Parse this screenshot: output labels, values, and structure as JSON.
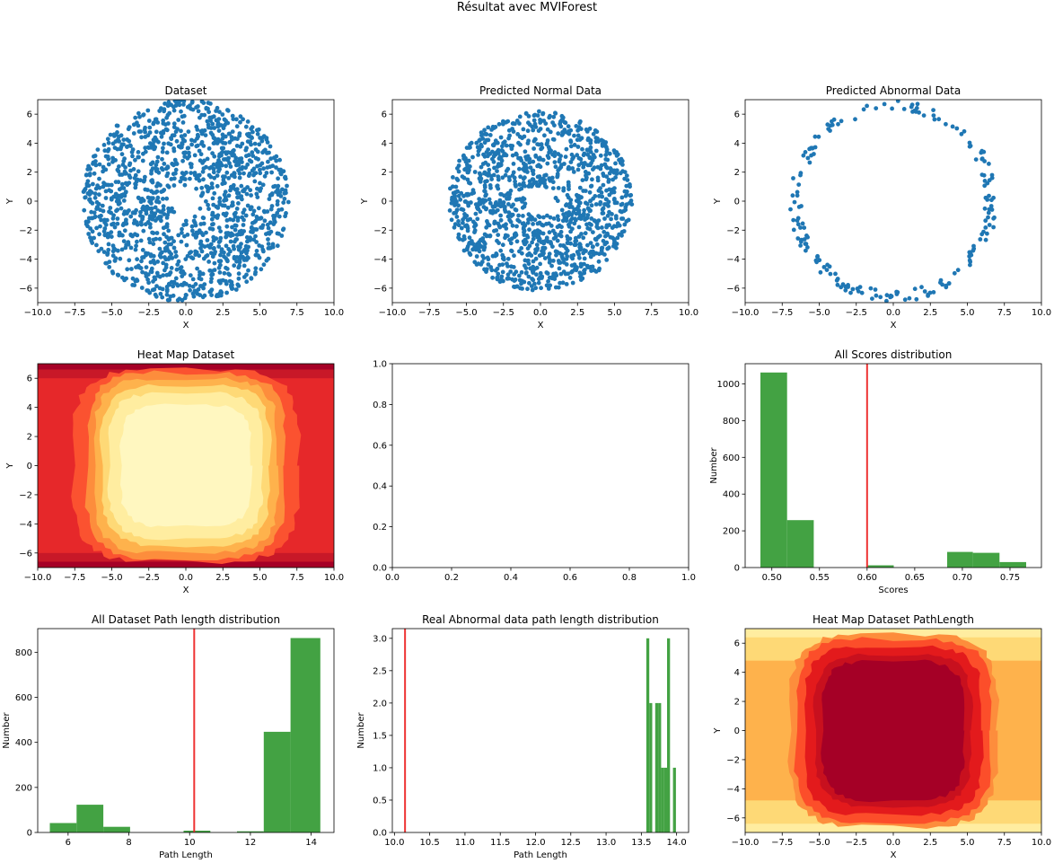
{
  "figure": {
    "suptitle": "Résultat avec MVIForest"
  },
  "colors": {
    "scatter": "#1f77b4",
    "hist": "#43a243",
    "threshold": "#ee3333"
  },
  "chart_data": [
    {
      "id": "dataset",
      "type": "scatter",
      "title": "Dataset",
      "xlabel": "X",
      "ylabel": "Y",
      "xlim": [
        -10,
        10
      ],
      "ylim": [
        -7,
        7
      ],
      "xticks": [
        -10,
        -7.5,
        -5,
        -2.5,
        0,
        2.5,
        5,
        7.5,
        10
      ],
      "xtick_labels": [
        "−10.0",
        "−7.5",
        "−5.0",
        "−2.5",
        "0.0",
        "2.5",
        "5.0",
        "7.5",
        "10.0"
      ],
      "yticks": [
        -6,
        -4,
        -2,
        0,
        2,
        4,
        6
      ],
      "ytick_labels": [
        "−6",
        "−4",
        "−2",
        "0",
        "2",
        "4",
        "6"
      ],
      "point_cloud": {
        "shape": "annulus",
        "inner_radius": 1.0,
        "outer_radius": 7.0,
        "count": 1400
      }
    },
    {
      "id": "normal",
      "type": "scatter",
      "title": "Predicted Normal Data",
      "xlabel": "X",
      "ylabel": "Y",
      "xlim": [
        -10,
        10
      ],
      "ylim": [
        -7,
        7
      ],
      "xticks": [
        -10,
        -7.5,
        -5,
        -2.5,
        0,
        2.5,
        5,
        7.5,
        10
      ],
      "xtick_labels": [
        "−10.0",
        "−7.5",
        "−5.0",
        "−2.5",
        "0.0",
        "2.5",
        "5.0",
        "7.5",
        "10.0"
      ],
      "yticks": [
        -6,
        -4,
        -2,
        0,
        2,
        4,
        6
      ],
      "ytick_labels": [
        "−6",
        "−4",
        "−2",
        "0",
        "2",
        "4",
        "6"
      ],
      "point_cloud": {
        "shape": "annulus",
        "inner_radius": 1.0,
        "outer_radius": 6.2,
        "count": 1250
      }
    },
    {
      "id": "abnormal",
      "type": "scatter",
      "title": "Predicted Abnormal Data",
      "xlabel": "X",
      "ylabel": "Y",
      "xlim": [
        -10,
        10
      ],
      "ylim": [
        -7,
        7
      ],
      "xticks": [
        -10,
        -7.5,
        -5,
        -2.5,
        0,
        2.5,
        5,
        7.5,
        10
      ],
      "xtick_labels": [
        "−10.0",
        "−7.5",
        "−5.0",
        "−2.5",
        "0.0",
        "2.5",
        "5.0",
        "7.5",
        "10.0"
      ],
      "yticks": [
        -6,
        -4,
        -2,
        0,
        2,
        4,
        6
      ],
      "ytick_labels": [
        "−6",
        "−4",
        "−2",
        "0",
        "2",
        "4",
        "6"
      ],
      "point_cloud": {
        "shape": "ring",
        "inner_radius": 6.2,
        "outer_radius": 7.0,
        "count": 190
      }
    },
    {
      "id": "heatmap1",
      "type": "heatmap",
      "title": "Heat Map Dataset",
      "xlabel": "X",
      "ylabel": "Y",
      "xlim": [
        -10,
        10
      ],
      "ylim": [
        -7,
        7
      ],
      "xticks": [
        -10,
        -7.5,
        -5,
        -2.5,
        0,
        2.5,
        5,
        7.5,
        10
      ],
      "xtick_labels": [
        "−10.0",
        "−7.5",
        "−5.0",
        "−2.5",
        "0.0",
        "2.5",
        "5.0",
        "7.5",
        "10.0"
      ],
      "yticks": [
        -6,
        -4,
        -2,
        0,
        2,
        4,
        6
      ],
      "ytick_labels": [
        "−6",
        "−4",
        "−2",
        "0",
        "2",
        "4",
        "6"
      ],
      "colormap": "YlOrRd_reversed",
      "levels": [
        {
          "color": "#a50026",
          "hx": 10.0,
          "hy": 7.0
        },
        {
          "color": "#c81828",
          "hx": 10.0,
          "hy": 6.6
        },
        {
          "color": "#e6282a",
          "hx": 10.0,
          "hy": 6.0
        },
        {
          "color": "#fb5230",
          "hx": 7.6,
          "hy": 6.6
        },
        {
          "color": "#fd8d3c",
          "hx": 6.7,
          "hy": 6.4
        },
        {
          "color": "#feb24c",
          "hx": 6.2,
          "hy": 6.0
        },
        {
          "color": "#fed976",
          "hx": 5.7,
          "hy": 5.5
        },
        {
          "color": "#ffeda0",
          "hx": 5.2,
          "hy": 5.0
        },
        {
          "color": "#fff7c0",
          "hx": 4.4,
          "hy": 4.2
        }
      ]
    },
    {
      "id": "empty",
      "type": "scatter",
      "title": "",
      "xlabel": "",
      "ylabel": "",
      "xlim": [
        0,
        1
      ],
      "ylim": [
        0,
        1
      ],
      "xticks": [
        0,
        0.2,
        0.4,
        0.6,
        0.8,
        1.0
      ],
      "xtick_labels": [
        "0.0",
        "0.2",
        "0.4",
        "0.6",
        "0.8",
        "1.0"
      ],
      "yticks": [
        0,
        0.2,
        0.4,
        0.6,
        0.8,
        1.0
      ],
      "ytick_labels": [
        "0.0",
        "0.2",
        "0.4",
        "0.6",
        "0.8",
        "1.0"
      ]
    },
    {
      "id": "scores",
      "type": "bar",
      "title": "All Scores distribution",
      "xlabel": "Scores",
      "ylabel": "Number",
      "xlim": [
        0.472,
        0.783
      ],
      "ylim": [
        0,
        1110
      ],
      "xticks": [
        0.5,
        0.55,
        0.6,
        0.65,
        0.7,
        0.75
      ],
      "xtick_labels": [
        "0.50",
        "0.55",
        "0.60",
        "0.65",
        "0.70",
        "0.75"
      ],
      "yticks": [
        0,
        200,
        400,
        600,
        800,
        1000
      ],
      "ytick_labels": [
        "0",
        "200",
        "400",
        "600",
        "800",
        "1000"
      ],
      "bins": [
        {
          "x0": 0.488,
          "x1": 0.516,
          "value": 1062
        },
        {
          "x0": 0.516,
          "x1": 0.544,
          "value": 258
        },
        {
          "x0": 0.544,
          "x1": 0.572,
          "value": 0
        },
        {
          "x0": 0.572,
          "x1": 0.6,
          "value": 0
        },
        {
          "x0": 0.6,
          "x1": 0.628,
          "value": 12
        },
        {
          "x0": 0.628,
          "x1": 0.656,
          "value": 0
        },
        {
          "x0": 0.656,
          "x1": 0.684,
          "value": 0
        },
        {
          "x0": 0.684,
          "x1": 0.711,
          "value": 85
        },
        {
          "x0": 0.711,
          "x1": 0.739,
          "value": 80
        },
        {
          "x0": 0.739,
          "x1": 0.767,
          "value": 30
        }
      ],
      "vline": 0.6
    },
    {
      "id": "pathlen",
      "type": "bar",
      "title": "All Dataset Path length distribution",
      "xlabel": "Path Length",
      "ylabel": "Number",
      "xlim": [
        5.0,
        14.75
      ],
      "ylim": [
        0,
        905
      ],
      "xticks": [
        6,
        8,
        10,
        12,
        14
      ],
      "xtick_labels": [
        "6",
        "8",
        "10",
        "12",
        "14"
      ],
      "yticks": [
        0,
        200,
        400,
        600,
        800
      ],
      "ytick_labels": [
        "0",
        "200",
        "400",
        "600",
        "800"
      ],
      "bins": [
        {
          "x0": 5.4,
          "x1": 6.28,
          "value": 42
        },
        {
          "x0": 6.28,
          "x1": 7.16,
          "value": 123
        },
        {
          "x0": 7.16,
          "x1": 8.04,
          "value": 25
        },
        {
          "x0": 8.04,
          "x1": 8.92,
          "value": 0
        },
        {
          "x0": 8.92,
          "x1": 9.8,
          "value": 0
        },
        {
          "x0": 9.8,
          "x1": 10.68,
          "value": 8
        },
        {
          "x0": 10.68,
          "x1": 11.56,
          "value": 0
        },
        {
          "x0": 11.56,
          "x1": 12.44,
          "value": 5
        },
        {
          "x0": 12.44,
          "x1": 13.32,
          "value": 447
        },
        {
          "x0": 13.32,
          "x1": 14.3,
          "value": 863
        }
      ],
      "vline": 10.15
    },
    {
      "id": "realabn",
      "type": "bar",
      "title": "Real Abnormal data path length distribution",
      "xlabel": "Path Length",
      "ylabel": "Number",
      "xlim": [
        9.97,
        14.17
      ],
      "ylim": [
        0,
        3.15
      ],
      "xticks": [
        10,
        10.5,
        11,
        11.5,
        12,
        12.5,
        13,
        13.5,
        14
      ],
      "xtick_labels": [
        "10.0",
        "10.5",
        "11.0",
        "11.5",
        "12.0",
        "12.5",
        "13.0",
        "13.5",
        "14.0"
      ],
      "yticks": [
        0,
        0.5,
        1,
        1.5,
        2,
        2.5,
        3
      ],
      "ytick_labels": [
        "0.0",
        "0.5",
        "1.0",
        "1.5",
        "2.0",
        "2.5",
        "3.0"
      ],
      "bins": [
        {
          "x0": 13.57,
          "x1": 13.612,
          "value": 3
        },
        {
          "x0": 13.612,
          "x1": 13.654,
          "value": 2
        },
        {
          "x0": 13.654,
          "x1": 13.696,
          "value": 0
        },
        {
          "x0": 13.696,
          "x1": 13.738,
          "value": 2
        },
        {
          "x0": 13.738,
          "x1": 13.78,
          "value": 2
        },
        {
          "x0": 13.78,
          "x1": 13.822,
          "value": 1
        },
        {
          "x0": 13.822,
          "x1": 13.864,
          "value": 1
        },
        {
          "x0": 13.864,
          "x1": 13.906,
          "value": 3
        },
        {
          "x0": 13.906,
          "x1": 13.948,
          "value": 0
        },
        {
          "x0": 13.948,
          "x1": 13.99,
          "value": 1
        }
      ],
      "vline": 10.15
    },
    {
      "id": "heatmap2",
      "type": "heatmap",
      "title": "Heat Map Dataset PathLength",
      "xlabel": "X",
      "ylabel": "Y",
      "xlim": [
        -10,
        10
      ],
      "ylim": [
        -7,
        7
      ],
      "xticks": [
        -10,
        -7.5,
        -5,
        -2.5,
        0,
        2.5,
        5,
        7.5,
        10
      ],
      "xtick_labels": [
        "−10.0",
        "−7.5",
        "−5.0",
        "−2.5",
        "0.0",
        "2.5",
        "5.0",
        "7.5",
        "10.0"
      ],
      "yticks": [
        -6,
        -4,
        -2,
        0,
        2,
        4,
        6
      ],
      "ytick_labels": [
        "−6",
        "−4",
        "−2",
        "0",
        "2",
        "4",
        "6"
      ],
      "colormap": "YlOrRd",
      "levels": [
        {
          "color": "#ffeda0",
          "hx": 10.0,
          "hy": 7.0
        },
        {
          "color": "#fed976",
          "hx": 10.0,
          "hy": 6.4
        },
        {
          "color": "#feb24c",
          "hx": 10.0,
          "hy": 4.8
        },
        {
          "color": "#fd8d3c",
          "hx": 7.0,
          "hy": 6.6
        },
        {
          "color": "#fc4e2a",
          "hx": 6.6,
          "hy": 6.3
        },
        {
          "color": "#e31a1c",
          "hx": 6.0,
          "hy": 5.8
        },
        {
          "color": "#c8101e",
          "hx": 5.3,
          "hy": 5.2
        },
        {
          "color": "#a50026",
          "hx": 4.8,
          "hy": 4.8
        }
      ]
    }
  ]
}
